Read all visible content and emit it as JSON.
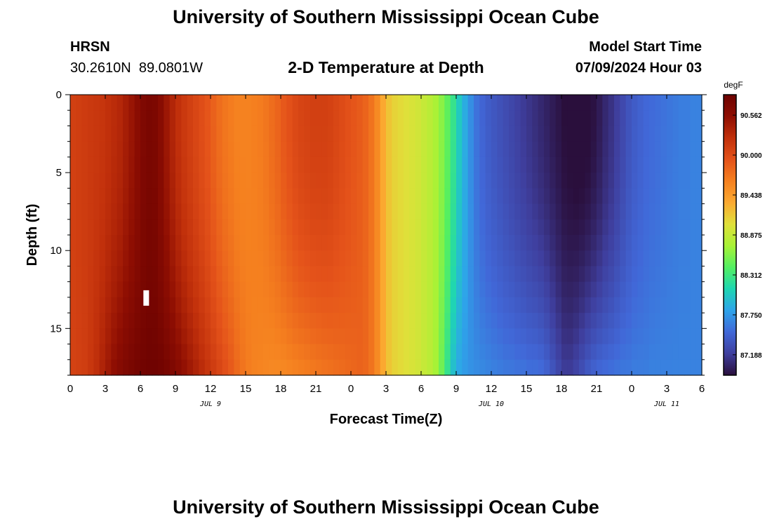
{
  "header": {
    "title": "University of Southern Mississippi Ocean Cube",
    "station": "HRSN",
    "coordinates": "30.2610N  89.0801W",
    "subtitle": "2-D Temperature at Depth",
    "model_start_label": "Model Start Time",
    "model_start_value": "07/09/2024 Hour 03"
  },
  "footer": {
    "title": "University of Southern Mississippi Ocean Cube"
  },
  "chart_data": {
    "type": "heatmap",
    "xlabel": "Forecast Time(Z)",
    "ylabel": "Depth (ft)",
    "x_ticks": [
      "0",
      "3",
      "6",
      "9",
      "12",
      "15",
      "18",
      "21",
      "0",
      "3",
      "6",
      "9",
      "12",
      "15",
      "18",
      "21",
      "0",
      "3",
      "6"
    ],
    "date_labels": [
      {
        "label": "JUL 9",
        "at_hour": 12
      },
      {
        "label": "JUL 10",
        "at_hour": 36
      },
      {
        "label": "JUL 11",
        "at_hour": 51
      }
    ],
    "x_range_hours": [
      0,
      54
    ],
    "y_ticks": [
      0,
      5,
      10,
      15
    ],
    "ylim": [
      0,
      18
    ],
    "y_inverted": true,
    "colorbar": {
      "unit": "degF",
      "tick_labels": [
        "90.562",
        "90.000",
        "89.438",
        "88.875",
        "88.312",
        "87.750",
        "87.188"
      ],
      "min": 86.9,
      "max": 90.85,
      "colors": [
        "#2a0f3c",
        "#3f3f9e",
        "#4168d8",
        "#2ea4ea",
        "#1ed6b2",
        "#53ef62",
        "#a8f236",
        "#e0e03a",
        "#fba931",
        "#f5801f",
        "#e4521a",
        "#c1300b",
        "#8e0e02",
        "#6c0201"
      ]
    },
    "time_hours": [
      0,
      0.5,
      1,
      1.5,
      2,
      2.5,
      3,
      3.5,
      4,
      4.5,
      5,
      5.5,
      6,
      6.5,
      7,
      7.5,
      8,
      8.5,
      9,
      9.5,
      10,
      10.5,
      11,
      11.5,
      12,
      12.5,
      13,
      13.5,
      14,
      14.5,
      15,
      15.5,
      16,
      16.5,
      17,
      17.5,
      18,
      18.5,
      19,
      19.5,
      20,
      20.5,
      21,
      21.5,
      22,
      22.5,
      23,
      23.5,
      24,
      24.5,
      25,
      25.5,
      26,
      26.5,
      27,
      27.5,
      28,
      28.5,
      29,
      29.5,
      30,
      30.5,
      31,
      31.5,
      32,
      32.5,
      33,
      33.5,
      34,
      34.5,
      35,
      35.5,
      36,
      36.5,
      37,
      37.5,
      38,
      38.5,
      39,
      39.5,
      40,
      40.5,
      41,
      41.5,
      42,
      42.5,
      43,
      43.5,
      44,
      44.5,
      45,
      45.5,
      46,
      46.5,
      47,
      47.5,
      48,
      48.5,
      49,
      49.5,
      50,
      50.5,
      51,
      51.5,
      52,
      52.5,
      53,
      53.5,
      54
    ],
    "surface_temp_degF": [
      90.1,
      90.12,
      90.14,
      90.16,
      90.18,
      90.2,
      90.24,
      90.28,
      90.32,
      90.4,
      90.48,
      90.58,
      90.68,
      90.72,
      90.7,
      90.6,
      90.46,
      90.34,
      90.24,
      90.16,
      90.1,
      90.04,
      89.98,
      89.92,
      89.84,
      89.76,
      89.7,
      89.66,
      89.62,
      89.62,
      89.62,
      89.64,
      89.66,
      89.7,
      89.76,
      89.82,
      89.9,
      89.96,
      90.02,
      90.06,
      90.08,
      90.1,
      90.1,
      90.1,
      90.08,
      90.04,
      90.0,
      89.96,
      89.92,
      89.88,
      89.82,
      89.72,
      89.56,
      89.34,
      89.18,
      89.1,
      89.06,
      89.02,
      88.98,
      88.94,
      88.88,
      88.82,
      88.74,
      88.62,
      88.46,
      88.26,
      88.04,
      87.86,
      87.7,
      87.56,
      87.48,
      87.42,
      87.38,
      87.34,
      87.3,
      87.26,
      87.22,
      87.18,
      87.14,
      87.1,
      87.06,
      87.02,
      86.98,
      86.94,
      86.9,
      86.88,
      86.86,
      86.86,
      86.88,
      86.92,
      86.98,
      87.06,
      87.12,
      87.2,
      87.28,
      87.36,
      87.42,
      87.46,
      87.5,
      87.52,
      87.54,
      87.56,
      87.58,
      87.6,
      87.62,
      87.62,
      87.64,
      87.64,
      87.64
    ],
    "bottom_temp_degF": [
      90.08,
      90.1,
      90.12,
      90.18,
      90.26,
      90.36,
      90.46,
      90.56,
      90.64,
      90.7,
      90.74,
      90.78,
      90.8,
      90.82,
      90.82,
      90.8,
      90.76,
      90.7,
      90.62,
      90.54,
      90.46,
      90.38,
      90.3,
      90.22,
      90.14,
      90.06,
      89.98,
      89.9,
      89.8,
      89.72,
      89.66,
      89.62,
      89.6,
      89.58,
      89.56,
      89.56,
      89.56,
      89.58,
      89.6,
      89.62,
      89.64,
      89.66,
      89.68,
      89.7,
      89.72,
      89.74,
      89.76,
      89.78,
      89.8,
      89.82,
      89.8,
      89.72,
      89.56,
      89.34,
      89.18,
      89.1,
      89.06,
      89.02,
      88.98,
      88.94,
      88.88,
      88.82,
      88.72,
      88.52,
      88.24,
      87.96,
      87.82,
      87.76,
      87.72,
      87.7,
      87.68,
      87.66,
      87.64,
      87.62,
      87.6,
      87.6,
      87.58,
      87.58,
      87.56,
      87.56,
      87.54,
      87.48,
      87.38,
      87.28,
      87.2,
      87.2,
      87.26,
      87.34,
      87.42,
      87.48,
      87.52,
      87.54,
      87.56,
      87.58,
      87.6,
      87.6,
      87.62,
      87.62,
      87.62,
      87.64,
      87.64,
      87.64,
      87.64,
      87.64,
      87.64,
      87.64,
      87.64,
      87.64,
      87.64
    ]
  },
  "annotation": {
    "marker_hour": 6.5,
    "marker_depth_ft": 13
  }
}
